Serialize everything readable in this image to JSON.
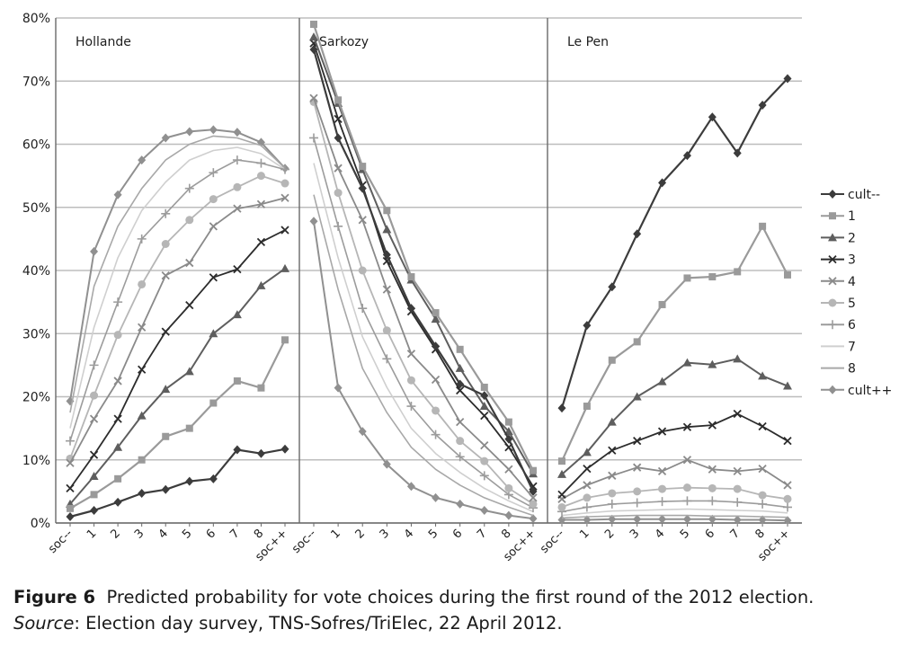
{
  "chart_data": {
    "type": "line",
    "categories": [
      "soc--",
      "1",
      "2",
      "3",
      "4",
      "5",
      "6",
      "7",
      "8",
      "soc++"
    ],
    "yticks": [
      "0%",
      "10%",
      "20%",
      "30%",
      "40%",
      "50%",
      "60%",
      "70%",
      "80%"
    ],
    "ylim": [
      0,
      80
    ],
    "grid": true,
    "legend_position": "right",
    "legend": [
      "cult--",
      "1",
      "2",
      "3",
      "4",
      "5",
      "6",
      "7",
      "8",
      "cult++"
    ],
    "panels": [
      {
        "title": "Hollande",
        "series": [
          {
            "name": "cult--",
            "values": [
              1.0,
              2.0,
              3.3,
              4.7,
              5.3,
              6.6,
              7.0,
              11.6,
              11.0,
              11.7
            ]
          },
          {
            "name": "1",
            "values": [
              2.3,
              4.5,
              7.0,
              10.0,
              13.7,
              15.0,
              19.0,
              22.5,
              21.4,
              29.0
            ]
          },
          {
            "name": "2",
            "values": [
              3.0,
              7.4,
              12.0,
              17.0,
              21.2,
              24.0,
              30.0,
              33.0,
              37.6,
              40.3
            ]
          },
          {
            "name": "3",
            "values": [
              5.5,
              10.8,
              16.5,
              24.3,
              30.3,
              34.5,
              38.9,
              40.2,
              44.5,
              46.4
            ]
          },
          {
            "name": "4",
            "values": [
              9.5,
              16.5,
              22.5,
              31.0,
              39.2,
              41.2,
              47.0,
              49.8,
              50.5,
              51.5
            ]
          },
          {
            "name": "5",
            "values": [
              10.2,
              20.2,
              29.8,
              37.8,
              44.2,
              48.0,
              51.3,
              53.2,
              55.0,
              53.8
            ]
          },
          {
            "name": "6",
            "values": [
              13.0,
              25.0,
              35.0,
              45.0,
              49.0,
              53.0,
              55.5,
              57.5,
              57.0,
              56.0
            ]
          },
          {
            "name": "7",
            "values": [
              15.0,
              31.0,
              42.0,
              49.5,
              54.0,
              57.5,
              59.0,
              59.5,
              58.5,
              56.0
            ]
          },
          {
            "name": "8",
            "values": [
              17.5,
              37.5,
              47.0,
              53.0,
              57.5,
              60.0,
              61.3,
              61.0,
              59.8,
              56.2
            ]
          },
          {
            "name": "cult++",
            "values": [
              19.3,
              43.0,
              52.0,
              57.5,
              61.0,
              62.0,
              62.3,
              61.9,
              60.3,
              56.2
            ]
          }
        ]
      },
      {
        "title": "Sarkozy",
        "series": [
          {
            "name": "cult--",
            "values": [
              75.0,
              61.0,
              53.0,
              42.5,
              34.0,
              28.0,
              22.0,
              20.2,
              13.3,
              5.0
            ]
          },
          {
            "name": "1",
            "values": [
              79.0,
              67.0,
              56.5,
              49.5,
              39.0,
              33.3,
              27.5,
              21.5,
              16.0,
              8.3
            ]
          },
          {
            "name": "2",
            "values": [
              77.0,
              66.5,
              56.0,
              46.5,
              38.5,
              32.3,
              24.5,
              18.5,
              14.5,
              7.8
            ]
          },
          {
            "name": "3",
            "values": [
              76.0,
              64.0,
              53.5,
              41.5,
              33.5,
              27.5,
              21.0,
              17.0,
              12.0,
              5.8
            ]
          },
          {
            "name": "4",
            "values": [
              67.3,
              56.2,
              48.0,
              37.0,
              26.8,
              22.7,
              16.0,
              12.3,
              8.5,
              4.0
            ]
          },
          {
            "name": "5",
            "values": [
              66.7,
              52.3,
              40.0,
              30.5,
              22.6,
              17.8,
              13.0,
              9.8,
              5.5,
              3.0
            ]
          },
          {
            "name": "6",
            "values": [
              61.0,
              47.0,
              34.0,
              26.0,
              18.5,
              14.0,
              10.5,
              7.5,
              4.5,
              2.4
            ]
          },
          {
            "name": "7",
            "values": [
              57.0,
              42.0,
              29.5,
              21.5,
              15.0,
              11.0,
              8.0,
              5.5,
              3.5,
              1.8
            ]
          },
          {
            "name": "8",
            "values": [
              52.0,
              37.0,
              24.5,
              17.5,
              12.0,
              8.5,
              6.0,
              4.0,
              2.5,
              1.2
            ]
          },
          {
            "name": "cult++",
            "values": [
              47.8,
              21.4,
              14.5,
              9.3,
              5.8,
              4.0,
              3.0,
              2.0,
              1.2,
              0.7
            ]
          }
        ]
      },
      {
        "title": "Le Pen",
        "series": [
          {
            "name": "cult--",
            "values": [
              18.2,
              31.3,
              37.4,
              45.8,
              53.9,
              58.2,
              64.3,
              58.6,
              66.2,
              70.4
            ]
          },
          {
            "name": "1",
            "values": [
              9.8,
              18.5,
              25.8,
              28.7,
              34.6,
              38.8,
              39.0,
              39.8,
              47.0,
              39.3
            ]
          },
          {
            "name": "2",
            "values": [
              7.7,
              11.2,
              16.0,
              20.0,
              22.4,
              25.4,
              25.1,
              26.0,
              23.3,
              21.7
            ]
          },
          {
            "name": "3",
            "values": [
              4.5,
              8.6,
              11.5,
              13.0,
              14.5,
              15.2,
              15.5,
              17.3,
              15.3,
              13.0
            ]
          },
          {
            "name": "4",
            "values": [
              3.8,
              6.0,
              7.5,
              8.8,
              8.2,
              10.0,
              8.5,
              8.2,
              8.6,
              6.0
            ]
          },
          {
            "name": "5",
            "values": [
              2.5,
              4.0,
              4.7,
              5.0,
              5.4,
              5.6,
              5.5,
              5.4,
              4.4,
              3.8
            ]
          },
          {
            "name": "6",
            "values": [
              1.8,
              2.5,
              3.0,
              3.2,
              3.4,
              3.5,
              3.5,
              3.3,
              3.0,
              2.5
            ]
          },
          {
            "name": "7",
            "values": [
              1.2,
              1.6,
              1.9,
              2.0,
              2.1,
              2.2,
              2.1,
              2.0,
              1.9,
              1.6
            ]
          },
          {
            "name": "8",
            "values": [
              0.8,
              1.0,
              1.1,
              1.2,
              1.2,
              1.2,
              1.1,
              1.1,
              1.0,
              0.9
            ]
          },
          {
            "name": "cult++",
            "values": [
              0.5,
              0.5,
              0.6,
              0.6,
              0.6,
              0.6,
              0.6,
              0.5,
              0.5,
              0.4
            ]
          }
        ]
      }
    ]
  },
  "caption": {
    "figure_label": "Figure 6",
    "text": "Predicted probability for vote choices during the first round of the 2012 election.",
    "source_label": "Source",
    "source_text": ": Election day survey, TNS-Sofres/TriElec, 22 April 2012."
  }
}
